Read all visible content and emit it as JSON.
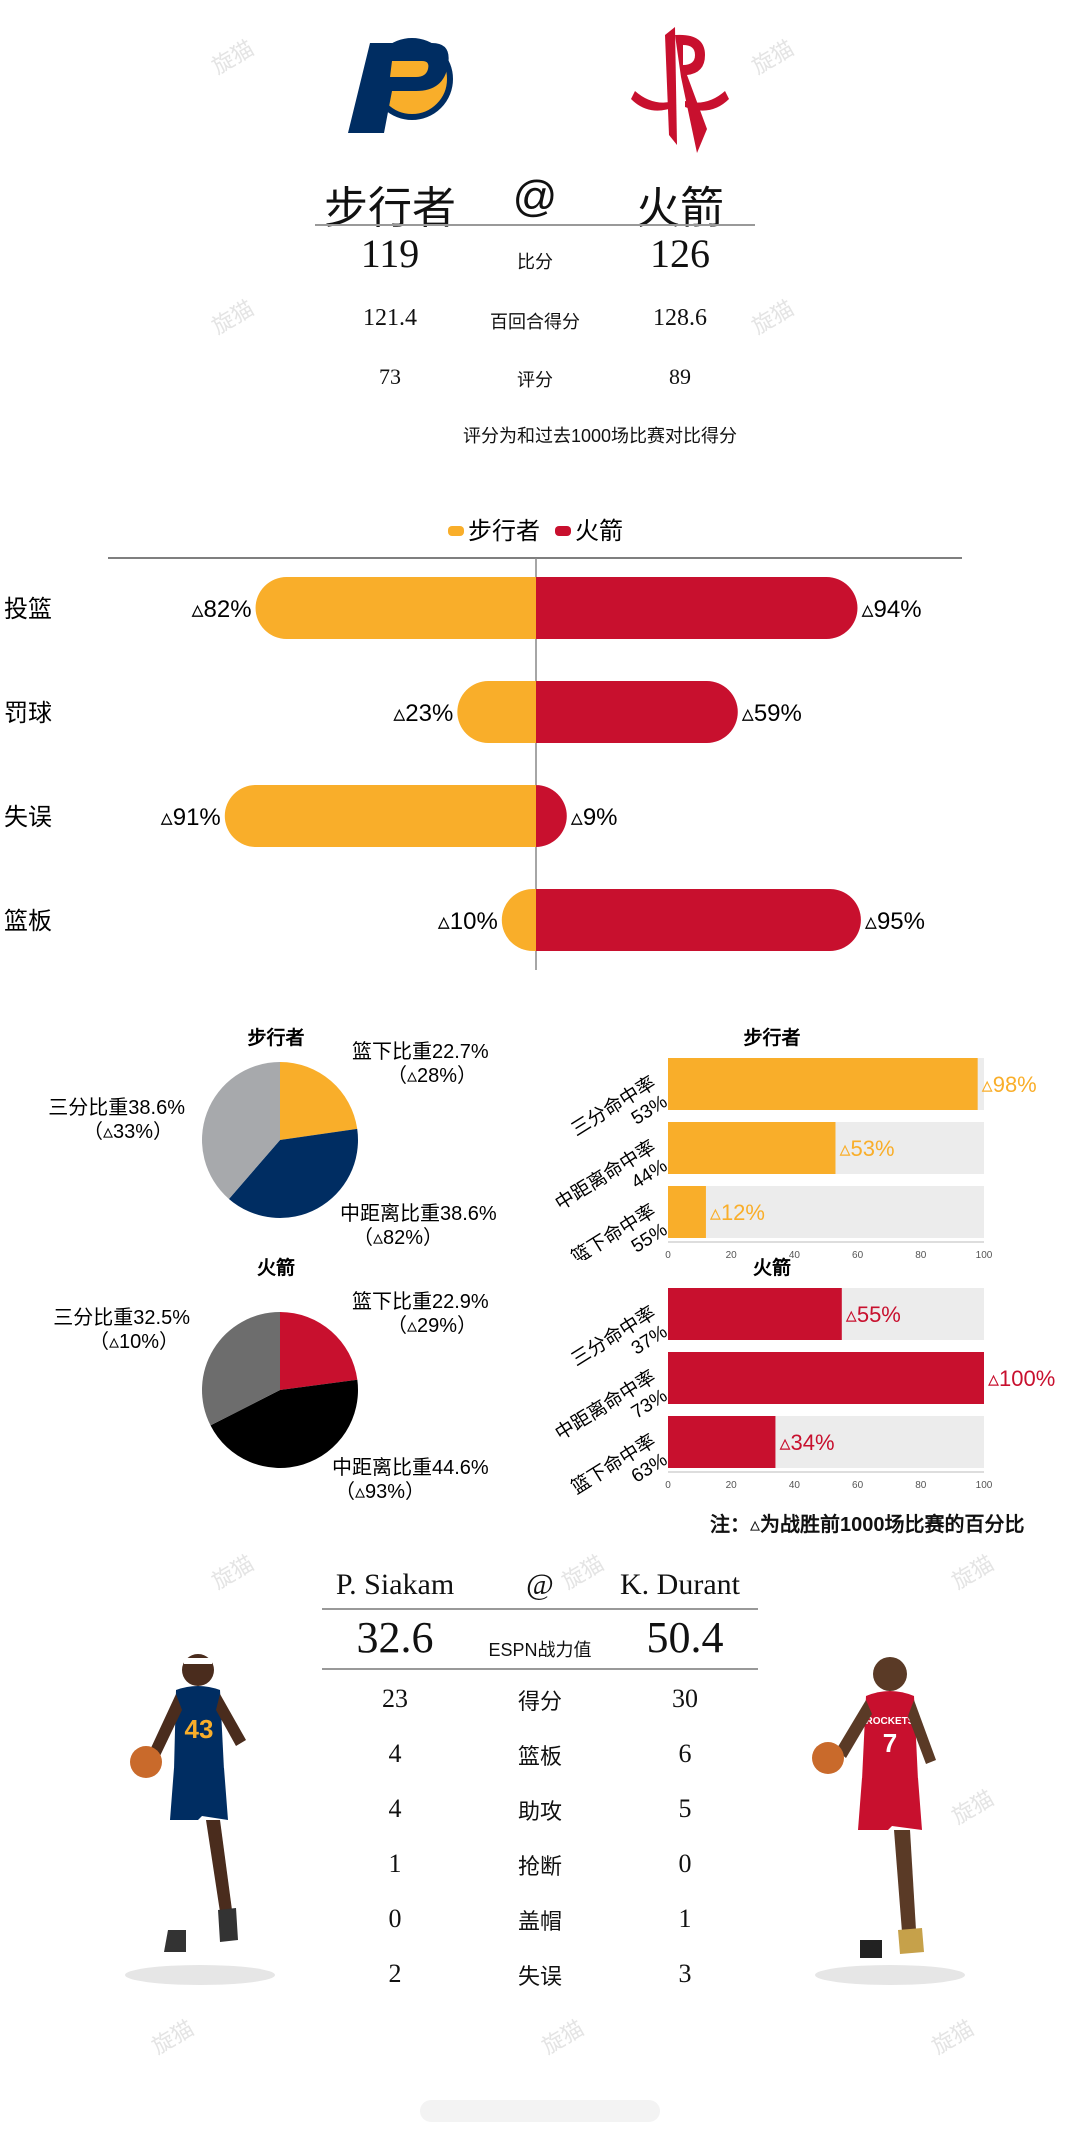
{
  "header": {
    "away_team": "步行者",
    "at": "@",
    "home_team": "火箭",
    "rows": [
      {
        "away": "119",
        "label": "比分",
        "home": "126"
      },
      {
        "away": "121.4",
        "label": "百回合得分",
        "home": "128.6"
      },
      {
        "away": "73",
        "label": "评分",
        "home": "89"
      }
    ],
    "note": "评分为和过去1000场比赛对比得分"
  },
  "colors": {
    "pacers": "#F9AE2A",
    "rockets": "#C8102E",
    "navy": "#002D62",
    "grey": "#A7A9AC",
    "dark_grey": "#6d6d6d",
    "black": "#000000",
    "track": "#ececec"
  },
  "watermark": "旋猫",
  "chart_data": [
    {
      "type": "bar",
      "orientation": "horizontal-diverging",
      "legend": [
        "步行者",
        "火箭"
      ],
      "legend_position": "top",
      "categories": [
        "投篮",
        "罚球",
        "失误",
        "篮板"
      ],
      "series": [
        {
          "name": "步行者",
          "values": [
            82,
            23,
            91,
            10
          ],
          "labels": [
            "▵82%",
            "▵23%",
            "▵91%",
            "▵10%"
          ]
        },
        {
          "name": "火箭",
          "values": [
            94,
            59,
            9,
            95
          ],
          "labels": [
            "▵94%",
            "▵59%",
            "▵9%",
            "▵95%"
          ]
        }
      ]
    },
    {
      "type": "pie",
      "title": "步行者",
      "slices": [
        {
          "name": "篮下比重22.7%",
          "sub": "（▵28%）",
          "value": 22.7,
          "color": "#F9AE2A"
        },
        {
          "name": "中距离比重38.6%",
          "sub": "（▵82%）",
          "value": 38.6,
          "color": "#002D62"
        },
        {
          "name": "三分比重38.6%",
          "sub": "（▵33%）",
          "value": 38.6,
          "color": "#A7A9AC"
        }
      ]
    },
    {
      "type": "pie",
      "title": "火箭",
      "slices": [
        {
          "name": "篮下比重22.9%",
          "sub": "（▵29%）",
          "value": 22.9,
          "color": "#C8102E"
        },
        {
          "name": "中距离比重44.6%",
          "sub": "（▵93%）",
          "value": 44.6,
          "color": "#000000"
        },
        {
          "name": "三分比重32.5%",
          "sub": "（▵10%）",
          "value": 32.5,
          "color": "#6d6d6d"
        }
      ]
    },
    {
      "type": "bar",
      "orientation": "horizontal",
      "title": "步行者",
      "categories": [
        "三分命中率\n53%",
        "中距离命中率\n44%",
        "篮下命中率\n55%"
      ],
      "values": [
        98,
        53,
        12
      ],
      "labels": [
        "▵98%",
        "▵53%",
        "▵12%"
      ],
      "xlim": [
        0,
        100
      ],
      "xticks": [
        "0",
        "20",
        "40",
        "60",
        "80",
        "100"
      ],
      "color": "#F9AE2A"
    },
    {
      "type": "bar",
      "orientation": "horizontal",
      "title": "火箭",
      "categories": [
        "三分命中率\n37%",
        "中距离命中率\n73%",
        "篮下命中率\n63%"
      ],
      "values": [
        55,
        100,
        34
      ],
      "labels": [
        "▵55%",
        "▵100%",
        "▵34%"
      ],
      "xlim": [
        0,
        100
      ],
      "xticks": [
        "0",
        "20",
        "40",
        "60",
        "80",
        "100"
      ],
      "color": "#C8102E"
    }
  ],
  "bar_note": "注：▵为战胜前1000场比赛的百分比",
  "players": {
    "away_name": "P. Siakam",
    "at": "@",
    "home_name": "K. Durant",
    "rating_label": "ESPN战力值",
    "away_rating": "32.6",
    "home_rating": "50.4",
    "rows": [
      {
        "away": "23",
        "label": "得分",
        "home": "30"
      },
      {
        "away": "4",
        "label": "篮板",
        "home": "6"
      },
      {
        "away": "4",
        "label": "助攻",
        "home": "5"
      },
      {
        "away": "1",
        "label": "抢断",
        "home": "0"
      },
      {
        "away": "0",
        "label": "盖帽",
        "home": "1"
      },
      {
        "away": "2",
        "label": "失误",
        "home": "3"
      }
    ],
    "away_jersey": "43",
    "home_jersey": "7",
    "home_jersey_text": "ROCKETS"
  }
}
